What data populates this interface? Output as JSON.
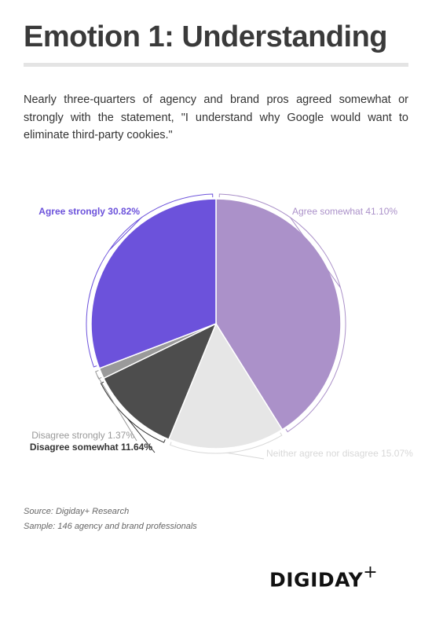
{
  "header": {
    "title": "Emotion 1: Understanding",
    "intro": "Nearly three-quarters of agency and brand pros agreed somewhat or strongly with the statement, \"I understand why Google would want to eliminate third-party cookies.\""
  },
  "chart_data": {
    "type": "pie",
    "title": "",
    "slices": [
      {
        "label": "Agree somewhat 41.10%",
        "value": 41.1,
        "color": "#ab91c9",
        "label_color": "#ab91c9"
      },
      {
        "label": "Neither agree nor disagree 15.07%",
        "value": 15.07,
        "color": "#e6e6e6",
        "label_color": "#d8d8d8"
      },
      {
        "label": "Disagree somewhat 11.64%",
        "value": 11.64,
        "color": "#4d4d4d",
        "label_color": "#333333"
      },
      {
        "label": "Disagree strongly 1.37%",
        "value": 1.37,
        "color": "#9a9a9a",
        "label_color": "#999999"
      },
      {
        "label": "Agree strongly 30.82%",
        "value": 30.82,
        "color": "#6c52db",
        "label_color": "#6c52db"
      }
    ]
  },
  "footer": {
    "source": "Source: Digiday+ Research",
    "sample": "Sample: 146 agency and brand professionals",
    "logo_text": "DIGIDAY",
    "logo_plus": "+"
  }
}
